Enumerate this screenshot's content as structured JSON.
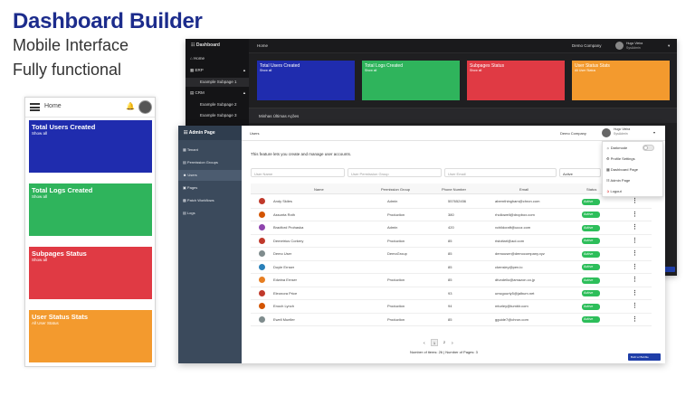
{
  "hero": {
    "title": "Dashboard Builder",
    "line1": "Mobile Interface",
    "line2": "Fully functional"
  },
  "mobile": {
    "header_label": "Home",
    "cards": [
      {
        "title": "Total Users Created",
        "sub": "Show all",
        "color": "#1f2cae"
      },
      {
        "title": "Total Logs Created",
        "sub": "Show all",
        "color": "#2fb45c"
      },
      {
        "title": "Subpages Status",
        "sub": "Show all",
        "color": "#e03a44"
      },
      {
        "title": "User Status Stats",
        "sub": "All User Status",
        "color": "#f39a2e"
      }
    ]
  },
  "dark": {
    "brand": "Dashboard",
    "header_title": "Home",
    "company": "Demo Company",
    "user_name": "Hugo Vieira",
    "user_role": "SysAdmin",
    "menu": [
      {
        "label": "Home"
      },
      {
        "label": "ERP"
      },
      {
        "label": "Example Subpage 1"
      },
      {
        "label": "CRM"
      },
      {
        "label": "Example Subpage 2"
      },
      {
        "label": "Example Subpage 3"
      }
    ],
    "cards": [
      {
        "title": "Total Users Created",
        "sub": "Show all",
        "color": "#1f2cae"
      },
      {
        "title": "Total Logs Created",
        "sub": "Show all",
        "color": "#2fb45c"
      },
      {
        "title": "Subpages Status",
        "sub": "Show all",
        "color": "#e03a44"
      },
      {
        "title": "User Status Stats",
        "sub": "All User Status",
        "color": "#f39a2e"
      }
    ],
    "section_title": "Minhas Últimas Ações"
  },
  "admin": {
    "brand": "Admin Page",
    "header_title": "Users",
    "company": "Demo Company",
    "user_name": "Hugo Vieira",
    "user_role": "SysAdmin",
    "description": "This feature lets you create and manage user accounts.",
    "sidebar": [
      {
        "label": "Tenant"
      },
      {
        "label": "Permission Groups"
      },
      {
        "label": "Users"
      },
      {
        "label": "Pages"
      },
      {
        "label": "Patch Workflows"
      },
      {
        "label": "Logs"
      }
    ],
    "filters": {
      "name_placeholder": "User Name",
      "group_placeholder": "User Permission Group",
      "email_placeholder": "User Email",
      "status_value": "Active"
    },
    "columns": [
      "Name",
      "Permission Group",
      "Phone Number",
      "Email",
      "Status"
    ],
    "rows": [
      {
        "name": "Andy Skiles",
        "group": "Admin",
        "phone": "557652456",
        "email": "abernthingham@chron.com",
        "status": "Active",
        "color": "#c0392b"
      },
      {
        "name": "Assunta Roth",
        "group": "Production",
        "phone": "380",
        "email": "rhollowell@dropbox.com",
        "status": "Active",
        "color": "#d35400"
      },
      {
        "name": "Bradford Prohaska",
        "group": "Admin",
        "phone": "420",
        "email": "vchildcraft@ucoz.com",
        "status": "Active",
        "color": "#8e44ad"
      },
      {
        "name": "Demetrius Corkery",
        "group": "Production",
        "phone": "85",
        "email": "ristoltarl@aol.com",
        "status": "Active",
        "color": "#c0392b"
      },
      {
        "name": "Demo User",
        "group": "DemoGroup",
        "phone": "85",
        "email": "demouser@democompany.xyz",
        "status": "Active",
        "color": "#7f8c8d"
      },
      {
        "name": "Doyle Ernser",
        "group": "",
        "phone": "85",
        "email": "ckensley@pen.io",
        "status": "Active",
        "color": "#2980b9"
      },
      {
        "name": "Edwina Ernser",
        "group": "Production",
        "phone": "85",
        "email": "dfundello@amazon.co.jp",
        "status": "Active",
        "color": "#e67e22"
      },
      {
        "name": "Eleonora Price",
        "group": "",
        "phone": "93",
        "email": "umcgourty5@jalbum.net",
        "status": "Active",
        "color": "#c0392b"
      },
      {
        "name": "Enoch Lynch",
        "group": "Production",
        "phone": "94",
        "email": "mturley@tumblr.com",
        "status": "Active",
        "color": "#d35400"
      },
      {
        "name": "Ewell Mueller",
        "group": "Production",
        "phone": "85",
        "email": "gguide7@chron.com",
        "status": "Active",
        "color": "#7f8c8d"
      }
    ],
    "pagination": {
      "prev": "‹",
      "pages": [
        "1",
        "2"
      ],
      "next": "›",
      "summary": "Number of items: 26 | Number of Pages: 3"
    },
    "user_menu": [
      {
        "label": "Darkmode"
      },
      {
        "label": "Profile Settings"
      },
      {
        "label": "Dashboard Page"
      },
      {
        "label": "Admin Page"
      },
      {
        "label": "Logout"
      }
    ],
    "builder_button": "Built w/ Bubble"
  }
}
